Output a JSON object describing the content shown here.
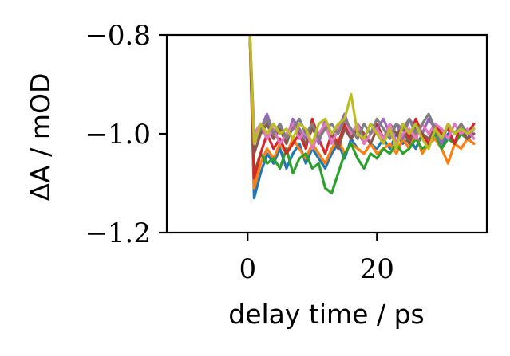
{
  "chart_data": {
    "type": "line",
    "xlabel": "delay time / ps",
    "ylabel": "ΔA / mOD",
    "xlim": [
      -12.5,
      37
    ],
    "ylim": [
      -1.2,
      -0.8
    ],
    "xticks": [
      0,
      20
    ],
    "xtick_labels": [
      "0",
      "20"
    ],
    "yticks": [
      -1.2,
      -1.0,
      -0.8
    ],
    "ytick_labels": [
      "−1.2",
      "−1.0",
      "−0.8"
    ],
    "grid": false,
    "x": [
      0.3,
      1.0,
      2.0,
      3.0,
      4.0,
      5.0,
      6.0,
      7.0,
      8.0,
      9.0,
      10.0,
      11.0,
      12.0,
      13.0,
      14.0,
      15.0,
      16.0,
      17.0,
      18.0,
      19.0,
      20.0,
      21.0,
      22.0,
      23.0,
      24.0,
      25.0,
      26.0,
      27.0,
      28.0,
      29.0,
      30.0,
      31.0,
      32.0,
      33.0,
      34.0,
      35.0
    ],
    "series": [
      {
        "color": "#1f77b4",
        "values": [
          -0.78,
          -1.13,
          -1.08,
          -1.04,
          -1.06,
          -1.03,
          -1.07,
          -1.04,
          -1.02,
          -1.06,
          -1.03,
          -1.05,
          -1.07,
          -1.04,
          -1.02,
          -1.05,
          -1.01,
          -1.03,
          -1.04,
          -1.02,
          -1.03,
          -1.01,
          -1.03,
          -1.0,
          -1.02,
          -1.01,
          -1.03,
          -1.0,
          -1.02,
          -1.01,
          -1.03,
          -1.0,
          -1.02,
          -1.0,
          -1.01,
          -1.02
        ]
      },
      {
        "color": "#ff7f0e",
        "values": [
          -0.78,
          -1.11,
          -1.06,
          -1.03,
          -1.05,
          -1.02,
          -1.04,
          -1.01,
          -1.03,
          -1.05,
          -1.02,
          -1.04,
          -1.06,
          -1.03,
          -1.01,
          -1.04,
          -1.02,
          -1.03,
          -1.04,
          -1.02,
          -1.04,
          -1.03,
          -1.02,
          -1.04,
          -1.01,
          -1.03,
          -1.0,
          -1.04,
          -1.02,
          -1.01,
          -1.03,
          -1.06,
          -1.02,
          -1.03,
          -1.01,
          -1.02
        ]
      },
      {
        "color": "#2ca02c",
        "values": [
          -0.78,
          -1.08,
          -1.04,
          -1.06,
          -1.05,
          -1.07,
          -1.03,
          -1.08,
          -1.05,
          -1.04,
          -1.07,
          -1.06,
          -1.11,
          -1.12,
          -1.08,
          -1.04,
          -1.02,
          -1.05,
          -1.07,
          -1.04,
          -1.05,
          -1.03,
          -1.04,
          -1.02,
          -1.04,
          -1.03,
          -1.01,
          -1.03,
          -1.02,
          -1.0,
          -1.03,
          -1.01,
          -1.02,
          -1.0,
          -1.01,
          -1.0
        ]
      },
      {
        "color": "#d62728",
        "values": [
          -0.78,
          -1.09,
          -1.04,
          -1.0,
          -1.03,
          -1.01,
          -1.04,
          -1.02,
          -1.0,
          -1.03,
          -0.97,
          -1.01,
          -1.04,
          -1.0,
          -1.02,
          -0.98,
          -1.01,
          -0.99,
          -1.02,
          -1.0,
          -0.98,
          -1.01,
          -0.99,
          -1.02,
          -0.98,
          -1.01,
          -0.97,
          -1.0,
          -1.02,
          -0.98,
          -1.0,
          -0.99,
          -1.02,
          -0.98,
          -1.0,
          -0.98
        ]
      },
      {
        "color": "#9467bd",
        "values": [
          -0.78,
          -1.02,
          -0.99,
          -0.96,
          -1.0,
          -0.98,
          -1.01,
          -0.97,
          -0.99,
          -1.01,
          -0.98,
          -1.02,
          -0.97,
          -1.0,
          -0.99,
          -0.96,
          -1.0,
          -0.98,
          -1.01,
          -0.98,
          -0.99,
          -0.97,
          -1.0,
          -0.98,
          -1.01,
          -0.97,
          -0.99,
          -1.0,
          -0.97,
          -0.99,
          -1.02,
          -0.98,
          -1.0,
          -0.99,
          -1.01,
          -0.99
        ]
      },
      {
        "color": "#8c564b",
        "values": [
          -0.78,
          -1.04,
          -1.0,
          -0.98,
          -1.01,
          -0.99,
          -1.02,
          -0.98,
          -1.0,
          -1.02,
          -0.99,
          -1.01,
          -0.98,
          -1.0,
          -1.03,
          -0.99,
          -1.01,
          -0.98,
          -1.0,
          -1.02,
          -0.99,
          -1.01,
          -0.98,
          -1.0,
          -0.99,
          -1.02,
          -0.98,
          -1.0,
          -1.01,
          -0.99,
          -1.01,
          -0.98,
          -1.0,
          -0.99,
          -1.01,
          -1.0
        ]
      },
      {
        "color": "#e377c2",
        "values": [
          -0.78,
          -1.0,
          -0.98,
          -1.01,
          -0.99,
          -1.02,
          -1.0,
          -0.98,
          -1.01,
          -0.99,
          -1.03,
          -1.0,
          -0.98,
          -1.02,
          -0.99,
          -0.97,
          -1.0,
          -0.98,
          -1.02,
          -1.0,
          -0.99,
          -1.01,
          -0.98,
          -1.02,
          -1.0,
          -0.99,
          -1.01,
          -0.98,
          -1.0,
          -0.98,
          -0.99,
          -1.01,
          -0.98,
          -1.0,
          -0.99,
          -1.01
        ]
      },
      {
        "color": "#7f7f7f",
        "values": [
          -0.78,
          -1.01,
          -0.99,
          -0.97,
          -1.0,
          -0.98,
          -1.01,
          -0.99,
          -0.97,
          -1.0,
          -0.98,
          -1.01,
          -0.99,
          -0.98,
          -1.0,
          -0.97,
          -0.99,
          -1.01,
          -0.98,
          -1.0,
          -0.97,
          -0.99,
          -1.01,
          -0.98,
          -0.99,
          -0.97,
          -1.0,
          -0.98,
          -0.96,
          -0.99,
          -1.01,
          -0.98,
          -1.0,
          -0.98,
          -1.0,
          -0.99
        ]
      },
      {
        "color": "#bcbd22",
        "values": [
          -0.78,
          -1.02,
          -0.98,
          -1.0,
          -0.98,
          -1.0,
          -0.99,
          -1.01,
          -0.98,
          -0.99,
          -1.02,
          -0.98,
          -0.97,
          -1.0,
          -0.98,
          -0.97,
          -0.92,
          -1.0,
          -1.01,
          -0.98,
          -1.0,
          -1.02,
          -0.99,
          -1.03,
          -0.98,
          -1.0,
          -0.98,
          -1.01,
          -1.03,
          -0.99,
          -1.01,
          -0.98,
          -1.0,
          -0.99,
          -1.0,
          -0.99
        ]
      }
    ]
  }
}
